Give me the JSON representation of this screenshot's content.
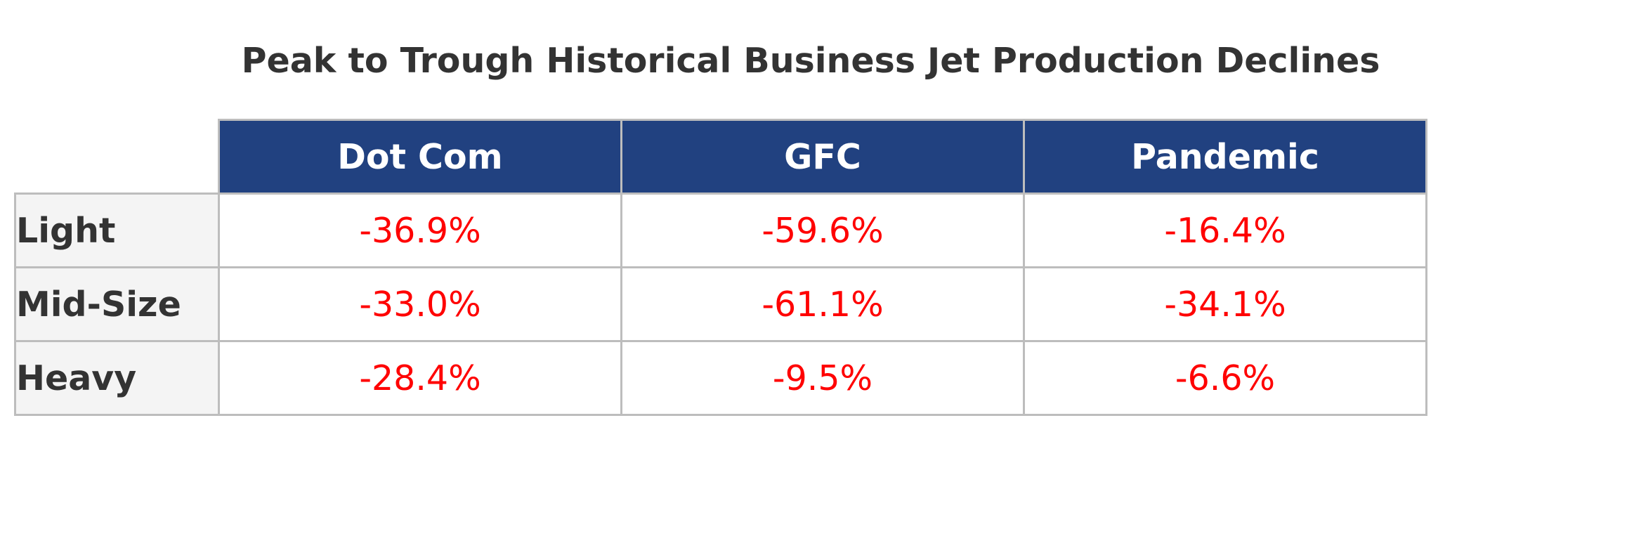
{
  "chart_data": {
    "type": "table",
    "title": "Peak to Trough Historical Business Jet Production Declines",
    "columns": [
      "Dot Com",
      "GFC",
      "Pandemic"
    ],
    "rows": [
      {
        "label": "Light",
        "values": [
          "-36.9%",
          "-59.6%",
          "-16.4%"
        ]
      },
      {
        "label": "Mid-Size",
        "values": [
          "-33.0%",
          "-61.1%",
          "-34.1%"
        ]
      },
      {
        "label": "Heavy",
        "values": [
          "-28.4%",
          "-9.5%",
          "-6.6%"
        ]
      }
    ],
    "numeric_values": [
      [
        -36.9,
        -59.6,
        -16.4
      ],
      [
        -33.0,
        -61.1,
        -34.1
      ],
      [
        -28.4,
        -9.5,
        -6.6
      ]
    ],
    "unit": "%",
    "colors": {
      "header_bg": "#214180",
      "header_text": "#ffffff",
      "row_header_bg": "#f4f4f4",
      "row_header_text": "#333333",
      "negative_value": "#ff0000",
      "border": "#bdbdbd",
      "title": "#333333"
    }
  }
}
